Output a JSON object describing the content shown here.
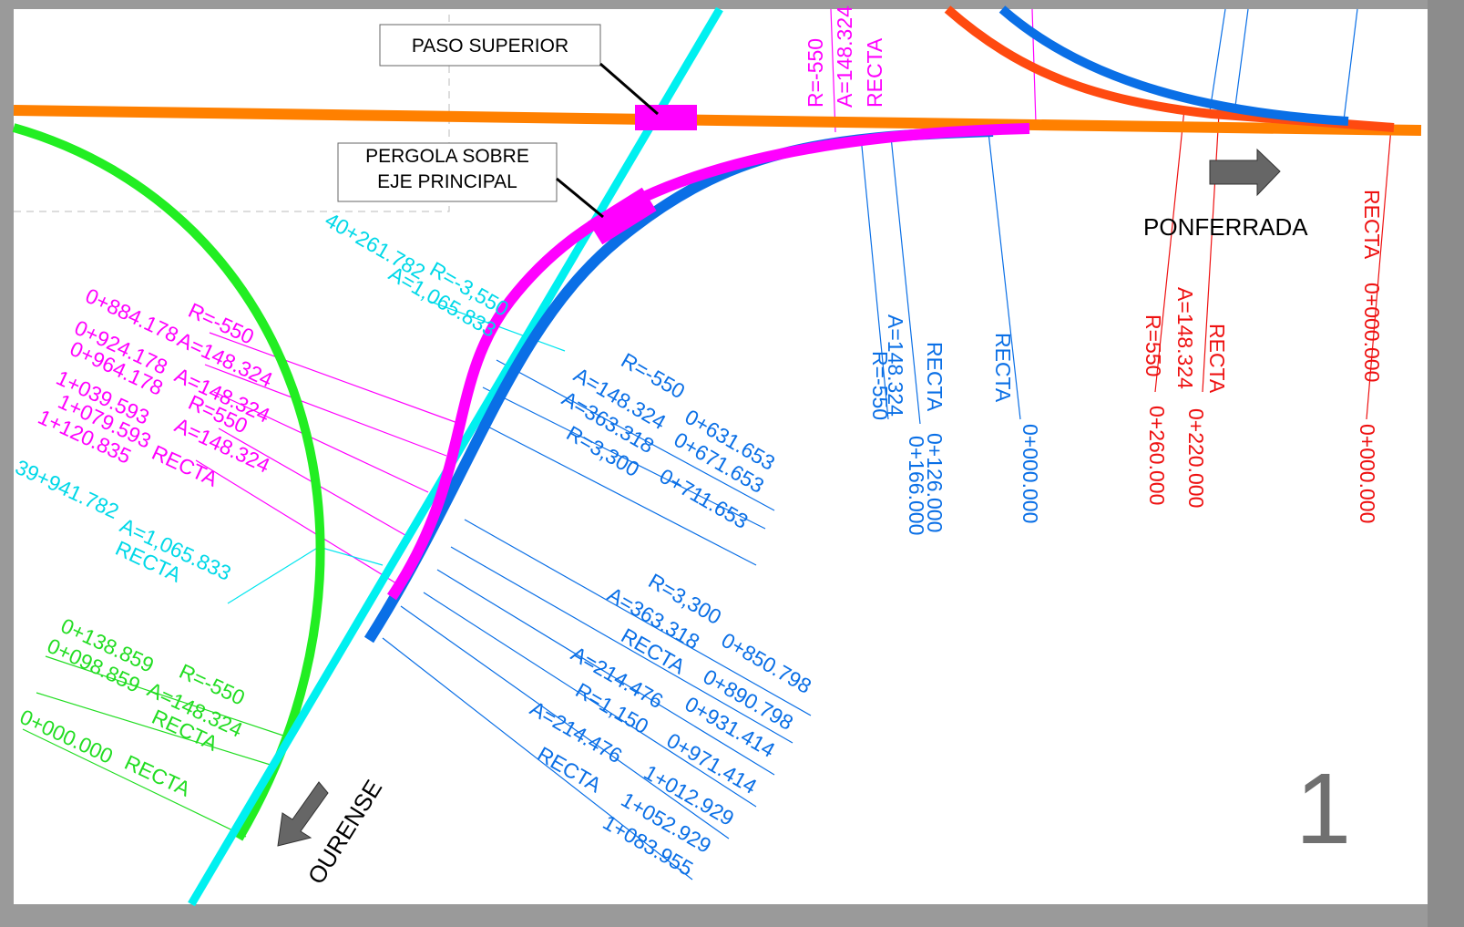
{
  "callouts": {
    "paso_superior": "PASO SUPERIOR",
    "pergola": [
      "PERGOLA SOBRE",
      "EJE PRINCIPAL"
    ]
  },
  "directions": {
    "ponferrada": "PONFERRADA",
    "ourense": "OURENSE"
  },
  "sheet_number": "1",
  "labels": {
    "magenta_top": [
      "R=-550",
      "A=148.324",
      "RECTA"
    ],
    "cyan_upper": [
      "40+261.782",
      "R=-3,550",
      "A=1,065.833"
    ],
    "magenta_left": [
      "0+884.178",
      "R=-550",
      "A=148.324",
      "0+924.178",
      "0+964.178",
      "A=148.324",
      "1+039.593",
      "R=550",
      "1+079.593",
      "A=148.324",
      "1+120.835",
      "RECTA"
    ],
    "cyan_lower": [
      "39+941.782",
      "A=1,065.833",
      "RECTA"
    ],
    "blue_middle": [
      "R=-550",
      "A=148.324",
      "0+631.653",
      "A=363.318",
      "0+671.653",
      "R=3,300",
      "0+711.653"
    ],
    "blue_vertical": [
      "A=148.324",
      "R=-550",
      "RECTA",
      "0+126.000",
      "0+166.000",
      "RECTA",
      "0+000.000"
    ],
    "red_vertical": [
      "A=148.324",
      "R=550",
      "RECTA",
      "0+260.000",
      "0+220.000",
      "RECTA",
      "0+000.000",
      "0+000.000"
    ],
    "blue_lower": [
      "R=3,300",
      "0+850.798",
      "A=363.318",
      "0+890.798",
      "RECTA",
      "0+931.414",
      "A=214.476",
      "0+971.414",
      "R=1,150",
      "1+012.929",
      "A=214.476",
      "1+052.929",
      "RECTA",
      "1+083.955"
    ],
    "green": [
      "0+138.859",
      "R=-550",
      "0+098.859",
      "A=148.324",
      "RECTA",
      "0+000.000",
      "RECTA"
    ]
  }
}
